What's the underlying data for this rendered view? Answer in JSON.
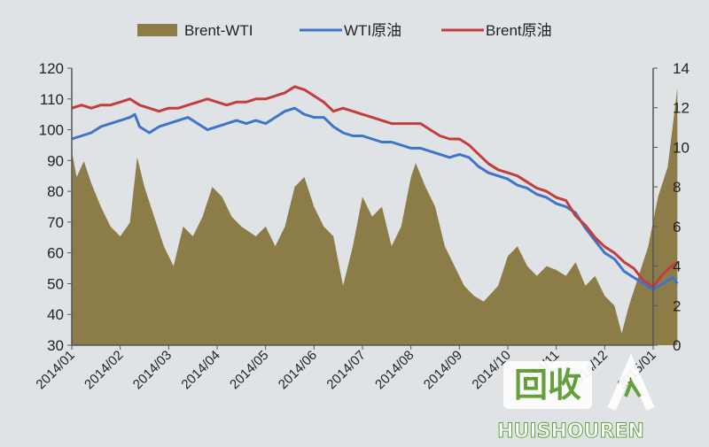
{
  "chart_data": {
    "type": "area+line",
    "title": "",
    "legend": {
      "placement": "top",
      "items": [
        "Brent-WTI",
        "WTI原油",
        "Brent原油"
      ]
    },
    "x_labels": [
      "2014/01",
      "2014/02",
      "2014/03",
      "2014/04",
      "2014/05",
      "2014/06",
      "2014/07",
      "2014/08",
      "2014/09",
      "2014/10",
      "2014/11",
      "2014/12",
      "2015/01"
    ],
    "y_left": {
      "min": 30,
      "max": 120,
      "step": 10,
      "ticks": [
        "30",
        "40",
        "50",
        "60",
        "70",
        "80",
        "90",
        "100",
        "110",
        "120"
      ]
    },
    "y_right": {
      "min": 0,
      "max": 14,
      "step": 2,
      "ticks": [
        "0",
        "2",
        "4",
        "6",
        "8",
        "10",
        "12",
        "14"
      ]
    },
    "grid": false,
    "series": [
      {
        "name": "Brent-WTI",
        "type": "area",
        "axis": "right",
        "color": "#8c7d48",
        "points": [
          [
            0,
            9.8
          ],
          [
            0.1,
            8.5
          ],
          [
            0.25,
            9.3
          ],
          [
            0.4,
            8.2
          ],
          [
            0.6,
            7.0
          ],
          [
            0.8,
            6.0
          ],
          [
            1.0,
            5.5
          ],
          [
            1.2,
            6.2
          ],
          [
            1.35,
            9.5
          ],
          [
            1.5,
            8.0
          ],
          [
            1.7,
            6.5
          ],
          [
            1.9,
            5.0
          ],
          [
            2.1,
            4.0
          ],
          [
            2.3,
            6.0
          ],
          [
            2.5,
            5.5
          ],
          [
            2.7,
            6.5
          ],
          [
            2.9,
            8.0
          ],
          [
            3.1,
            7.5
          ],
          [
            3.3,
            6.5
          ],
          [
            3.5,
            6.0
          ],
          [
            3.8,
            5.5
          ],
          [
            4.0,
            6.0
          ],
          [
            4.2,
            5.0
          ],
          [
            4.4,
            6.0
          ],
          [
            4.6,
            8.0
          ],
          [
            4.8,
            8.5
          ],
          [
            5.0,
            7.0
          ],
          [
            5.2,
            6.0
          ],
          [
            5.4,
            5.5
          ],
          [
            5.6,
            3.0
          ],
          [
            5.8,
            5.0
          ],
          [
            6.0,
            7.5
          ],
          [
            6.2,
            6.5
          ],
          [
            6.4,
            7.0
          ],
          [
            6.6,
            5.0
          ],
          [
            6.8,
            6.0
          ],
          [
            7.0,
            8.5
          ],
          [
            7.1,
            9.2
          ],
          [
            7.3,
            8.0
          ],
          [
            7.5,
            7.0
          ],
          [
            7.7,
            5.0
          ],
          [
            7.9,
            4.0
          ],
          [
            8.1,
            3.0
          ],
          [
            8.3,
            2.5
          ],
          [
            8.5,
            2.2
          ],
          [
            8.8,
            3.0
          ],
          [
            9.0,
            4.5
          ],
          [
            9.2,
            5.0
          ],
          [
            9.4,
            4.0
          ],
          [
            9.6,
            3.5
          ],
          [
            9.8,
            4.0
          ],
          [
            10.0,
            3.8
          ],
          [
            10.2,
            3.5
          ],
          [
            10.4,
            4.2
          ],
          [
            10.6,
            3.0
          ],
          [
            10.8,
            3.5
          ],
          [
            11.0,
            2.5
          ],
          [
            11.2,
            2.0
          ],
          [
            11.35,
            0.6
          ],
          [
            11.5,
            2.0
          ],
          [
            11.7,
            3.5
          ],
          [
            11.9,
            5.0
          ],
          [
            12.1,
            7.5
          ],
          [
            12.3,
            9.0
          ],
          [
            12.45,
            12.0
          ],
          [
            12.5,
            13.0
          ]
        ]
      },
      {
        "name": "WTI原油",
        "type": "line",
        "axis": "left",
        "color": "#3f74c8",
        "points": [
          [
            0,
            97
          ],
          [
            0.2,
            98
          ],
          [
            0.4,
            99
          ],
          [
            0.6,
            101
          ],
          [
            0.8,
            102
          ],
          [
            1.0,
            103
          ],
          [
            1.2,
            104
          ],
          [
            1.3,
            105
          ],
          [
            1.4,
            101
          ],
          [
            1.6,
            99
          ],
          [
            1.8,
            101
          ],
          [
            2.0,
            102
          ],
          [
            2.2,
            103
          ],
          [
            2.4,
            104
          ],
          [
            2.6,
            102
          ],
          [
            2.8,
            100
          ],
          [
            3.0,
            101
          ],
          [
            3.2,
            102
          ],
          [
            3.4,
            103
          ],
          [
            3.6,
            102
          ],
          [
            3.8,
            103
          ],
          [
            4.0,
            102
          ],
          [
            4.2,
            104
          ],
          [
            4.4,
            106
          ],
          [
            4.6,
            107
          ],
          [
            4.8,
            105
          ],
          [
            5.0,
            104
          ],
          [
            5.2,
            104
          ],
          [
            5.4,
            101
          ],
          [
            5.6,
            99
          ],
          [
            5.8,
            98
          ],
          [
            6.0,
            98
          ],
          [
            6.2,
            97
          ],
          [
            6.4,
            96
          ],
          [
            6.6,
            96
          ],
          [
            6.8,
            95
          ],
          [
            7.0,
            94
          ],
          [
            7.2,
            94
          ],
          [
            7.4,
            93
          ],
          [
            7.6,
            92
          ],
          [
            7.8,
            91
          ],
          [
            8.0,
            92
          ],
          [
            8.2,
            91
          ],
          [
            8.4,
            88
          ],
          [
            8.6,
            86
          ],
          [
            8.8,
            85
          ],
          [
            9.0,
            84
          ],
          [
            9.2,
            82
          ],
          [
            9.4,
            81
          ],
          [
            9.6,
            79
          ],
          [
            9.8,
            78
          ],
          [
            10.0,
            76
          ],
          [
            10.2,
            75
          ],
          [
            10.4,
            73
          ],
          [
            10.6,
            68
          ],
          [
            10.8,
            64
          ],
          [
            11.0,
            60
          ],
          [
            11.2,
            58
          ],
          [
            11.4,
            54
          ],
          [
            11.6,
            52
          ],
          [
            11.8,
            50
          ],
          [
            12.0,
            48
          ],
          [
            12.2,
            50
          ],
          [
            12.4,
            52
          ],
          [
            12.5,
            50
          ]
        ]
      },
      {
        "name": "Brent原油",
        "type": "line",
        "axis": "left",
        "color": "#c43c3c",
        "points": [
          [
            0,
            107
          ],
          [
            0.2,
            108
          ],
          [
            0.4,
            107
          ],
          [
            0.6,
            108
          ],
          [
            0.8,
            108
          ],
          [
            1.0,
            109
          ],
          [
            1.2,
            110
          ],
          [
            1.4,
            108
          ],
          [
            1.6,
            107
          ],
          [
            1.8,
            106
          ],
          [
            2.0,
            107
          ],
          [
            2.2,
            107
          ],
          [
            2.4,
            108
          ],
          [
            2.6,
            109
          ],
          [
            2.8,
            110
          ],
          [
            3.0,
            109
          ],
          [
            3.2,
            108
          ],
          [
            3.4,
            109
          ],
          [
            3.6,
            109
          ],
          [
            3.8,
            110
          ],
          [
            4.0,
            110
          ],
          [
            4.2,
            111
          ],
          [
            4.4,
            112
          ],
          [
            4.6,
            114
          ],
          [
            4.8,
            113
          ],
          [
            5.0,
            111
          ],
          [
            5.2,
            109
          ],
          [
            5.4,
            106
          ],
          [
            5.6,
            107
          ],
          [
            5.8,
            106
          ],
          [
            6.0,
            105
          ],
          [
            6.2,
            104
          ],
          [
            6.4,
            103
          ],
          [
            6.6,
            102
          ],
          [
            6.8,
            102
          ],
          [
            7.0,
            102
          ],
          [
            7.2,
            102
          ],
          [
            7.4,
            100
          ],
          [
            7.6,
            98
          ],
          [
            7.8,
            97
          ],
          [
            8.0,
            97
          ],
          [
            8.2,
            95
          ],
          [
            8.4,
            92
          ],
          [
            8.6,
            89
          ],
          [
            8.8,
            87
          ],
          [
            9.0,
            86
          ],
          [
            9.2,
            85
          ],
          [
            9.4,
            83
          ],
          [
            9.6,
            81
          ],
          [
            9.8,
            80
          ],
          [
            10.0,
            78
          ],
          [
            10.2,
            77
          ],
          [
            10.4,
            72
          ],
          [
            10.6,
            69
          ],
          [
            10.8,
            65
          ],
          [
            11.0,
            62
          ],
          [
            11.2,
            60
          ],
          [
            11.4,
            57
          ],
          [
            11.6,
            55
          ],
          [
            11.8,
            51
          ],
          [
            12.0,
            49
          ],
          [
            12.2,
            53
          ],
          [
            12.4,
            56
          ],
          [
            12.5,
            57
          ]
        ]
      }
    ]
  },
  "watermark": {
    "logo_text": "回收",
    "brand_text": "HUISHOUREN"
  }
}
